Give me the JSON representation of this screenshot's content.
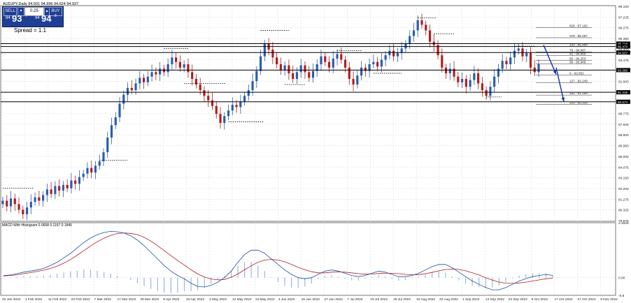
{
  "header": {
    "symbol_line": "AUDJPY,Daily  94.501 94.996 94.624 94.937"
  },
  "trade_panel": {
    "sell": "SELL",
    "buy": "BUY",
    "lot": "0.25",
    "bid_small": "94",
    "bid_big": "93",
    "bid_sup": "7",
    "ask_small": "94",
    "ask_big": "94",
    "ask_sup": "8",
    "spread": "Spread = 1.1",
    "minus": "▾",
    "plus": "▴"
  },
  "indicator": {
    "label": "MACD With Histogram 0.0658 0.1167 0.1845"
  },
  "colors": {
    "up": "#2a5db0",
    "down": "#b31c1c",
    "signal": "#b31c1c",
    "macd": "#1f4fa0",
    "hist": "#9bb7d9",
    "grid": "#dcdcdc",
    "arrow": "#1033a8",
    "ask_tag": "#000000"
  },
  "chart_data": {
    "type": "candlestick",
    "price_ylim": [
      79.975,
      99.1
    ],
    "price_ticks": [
      "99.100",
      "97.225",
      "96.275",
      "95.350",
      "94.400",
      "93.475",
      "92.525",
      "91.600",
      "90.650",
      "89.725",
      "88.775",
      "87.825",
      "86.900",
      "85.950",
      "85.000",
      "84.075",
      "83.150",
      "82.200",
      "81.275",
      "80.325",
      "79.975"
    ],
    "x_dates": [
      "20 Jan 2022",
      "1 Feb 2022",
      "11 Feb 2022",
      "23 Feb 2022",
      "7 Mar 2022",
      "17 Mar 2022",
      "29 Mar 2022",
      "8 Apr 2022",
      "20 Apr 2022",
      "2 May 2022",
      "12 May 2022",
      "24 May 2022",
      "3 Jun 2022",
      "15 Jun 2022",
      "27 Jun 2022",
      "7 Jul 2022",
      "19 Jul 2022",
      "29 Jul 2022",
      "10 Aug 2022",
      "22 Aug 2022",
      "1 Sep 2022",
      "13 Sep 2022",
      "23 Sep 2022",
      "5 Oct 2022",
      "17 Oct 2022",
      "27 Oct 2022",
      "8 Nov 2022"
    ],
    "closes": [
      81.8,
      81.3,
      82.0,
      81.5,
      81.0,
      80.6,
      81.2,
      81.7,
      82.1,
      81.8,
      82.3,
      82.8,
      82.4,
      83.1,
      82.7,
      83.2,
      82.9,
      83.6,
      83.3,
      83.9,
      84.2,
      84.7,
      84.3,
      84.9,
      85.3,
      86.1,
      87.4,
      88.5,
      89.2,
      90.4,
      91.2,
      91.8,
      91.6,
      92.2,
      92.7,
      92.3,
      92.8,
      93.2,
      93.0,
      93.5,
      93.2,
      93.9,
      94.5,
      94.1,
      93.6,
      93.9,
      93.2,
      92.6,
      92.1,
      91.6,
      91.1,
      90.7,
      90.2,
      89.5,
      88.7,
      89.3,
      89.8,
      90.3,
      90.1,
      90.6,
      91.1,
      91.6,
      92.4,
      93.3,
      94.6,
      95.7,
      95.2,
      94.5,
      93.9,
      93.4,
      93.8,
      93.1,
      92.6,
      93.2,
      93.8,
      93.2,
      92.7,
      93.3,
      93.9,
      94.6,
      94.1,
      93.6,
      94.4,
      94.8,
      94.3,
      93.6,
      92.6,
      92.1,
      92.9,
      93.6,
      93.3,
      93.9,
      94.1,
      93.7,
      94.3,
      94.7,
      95.1,
      94.6,
      94.9,
      95.3,
      95.7,
      96.4,
      96.9,
      97.8,
      97.4,
      96.9,
      95.9,
      95.6,
      94.7,
      93.6,
      93.1,
      93.5,
      92.8,
      92.3,
      92.6,
      91.9,
      92.5,
      93.1,
      92.2,
      91.6,
      91.1,
      91.9,
      92.8,
      93.5,
      94.2,
      93.9,
      94.5,
      95.1,
      95.3,
      94.6,
      94.9,
      93.6,
      93.2,
      93.9
    ],
    "resistance_lines": [
      "95.728",
      "95.474",
      "94.937",
      "93.380",
      "91.416",
      "90.574"
    ],
    "fibo_levels": [
      {
        "label": "628 - 97.162",
        "value": 97.162
      },
      {
        "label": "378 - 96.257",
        "value": 96.257
      },
      {
        "label": "100 - 95.494",
        "value": 95.494
      },
      {
        "label": "79 - 94.997",
        "value": 94.997
      },
      {
        "label": "62 - 94.660",
        "value": 94.66
      },
      {
        "label": "50 - 94.253",
        "value": 94.253
      },
      {
        "label": "38 - 93.946",
        "value": 93.946
      },
      {
        "label": "0 - 92.952",
        "value": 92.952
      },
      {
        "label": "127 - 92.249",
        "value": 92.249
      },
      {
        "label": "161 - 91.164",
        "value": 91.164
      },
      {
        "label": "200 - 90.333",
        "value": 90.333
      }
    ],
    "macd_ylim": [
      -0.8,
      2.4929
    ],
    "macd_ticks": [
      "2.4929",
      "0.00",
      "-0.8"
    ],
    "macd": [
      0.1,
      0.12,
      0.18,
      0.25,
      0.3,
      0.35,
      0.42,
      0.55,
      0.7,
      0.9,
      1.1,
      1.35,
      1.6,
      1.8,
      1.95,
      2.05,
      2.1,
      2.08,
      2.02,
      1.9,
      1.7,
      1.45,
      1.15,
      0.85,
      0.55,
      0.3,
      0.1,
      -0.05,
      -0.25,
      -0.4,
      -0.42,
      -0.35,
      -0.2,
      0.0,
      0.3,
      0.7,
      1.05,
      1.25,
      1.25,
      1.1,
      0.85,
      0.6,
      0.35,
      0.15,
      0.0,
      -0.05,
      0.0,
      0.15,
      0.3,
      0.35,
      0.3,
      0.2,
      0.1,
      0.05,
      0.1,
      0.2,
      0.3,
      0.25,
      0.15,
      0.05,
      0.05,
      0.1,
      0.2,
      0.35,
      0.5,
      0.6,
      0.6,
      0.45,
      0.25,
      0.05,
      -0.15,
      -0.3,
      -0.45,
      -0.55,
      -0.55,
      -0.45,
      -0.3,
      -0.15,
      -0.05,
      0.05,
      0.1,
      0.15,
      0.1
    ],
    "macd_signal": [
      0.08,
      0.1,
      0.13,
      0.18,
      0.23,
      0.28,
      0.34,
      0.42,
      0.52,
      0.66,
      0.82,
      1.02,
      1.23,
      1.44,
      1.63,
      1.79,
      1.92,
      2.0,
      2.03,
      2.01,
      1.95,
      1.83,
      1.66,
      1.45,
      1.23,
      1.0,
      0.78,
      0.57,
      0.36,
      0.17,
      0.03,
      -0.06,
      -0.1,
      -0.08,
      0.02,
      0.17,
      0.36,
      0.54,
      0.7,
      0.8,
      0.83,
      0.8,
      0.72,
      0.6,
      0.47,
      0.36,
      0.27,
      0.22,
      0.22,
      0.25,
      0.26,
      0.25,
      0.22,
      0.18,
      0.16,
      0.17,
      0.19,
      0.2,
      0.2,
      0.18,
      0.15,
      0.13,
      0.14,
      0.18,
      0.24,
      0.31,
      0.37,
      0.39,
      0.37,
      0.31,
      0.22,
      0.12,
      0.0,
      -0.11,
      -0.2,
      -0.25,
      -0.26,
      -0.24,
      -0.2,
      -0.15,
      -0.1,
      -0.05,
      -0.02
    ]
  }
}
